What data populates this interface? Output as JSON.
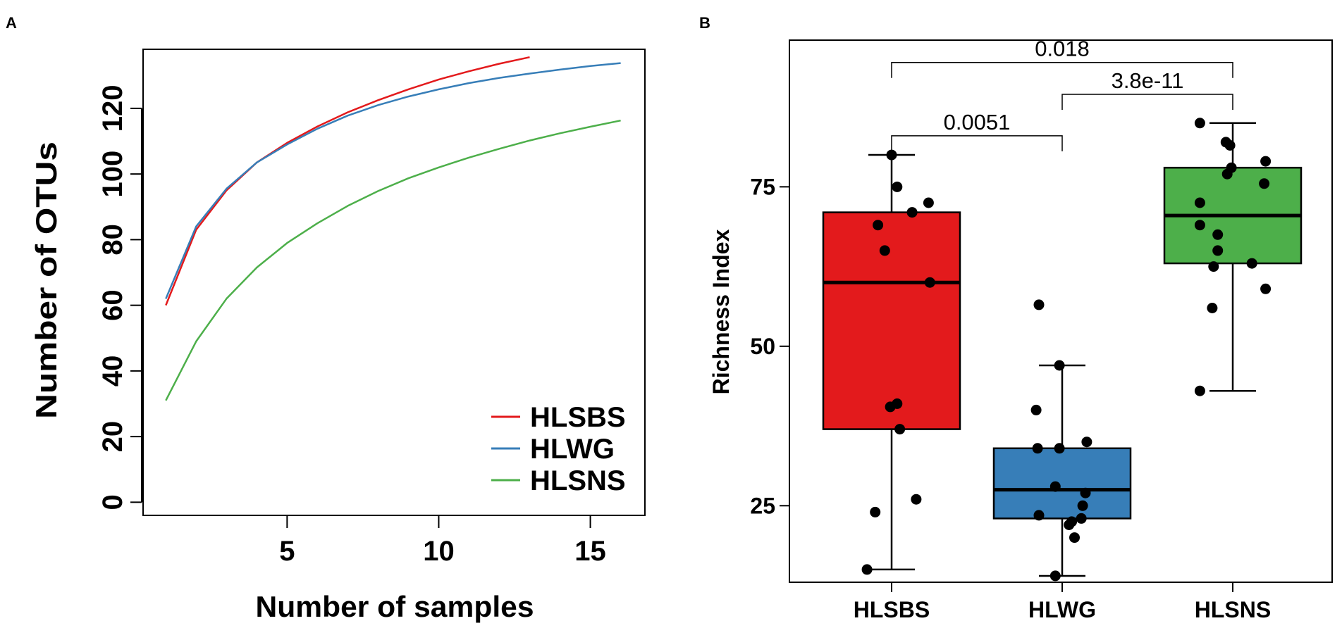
{
  "panels": {
    "a_label": "A",
    "b_label": "B"
  },
  "chart_data": [
    {
      "type": "line",
      "panel": "A",
      "title": "",
      "xlabel": "Number of samples",
      "ylabel": "Number of OTUs",
      "xlim": [
        0.25,
        16.8
      ],
      "ylim": [
        -4,
        138
      ],
      "xticks": [
        5,
        10,
        15
      ],
      "yticks": [
        0,
        20,
        40,
        60,
        80,
        100,
        120
      ],
      "legend_position": "bottom-right",
      "series": [
        {
          "name": "HLSBS",
          "color": "#e31a1c",
          "x": [
            1,
            2,
            3,
            4,
            5,
            6,
            7,
            8,
            9,
            10,
            11,
            12,
            13
          ],
          "y": [
            60,
            83,
            95,
            103.5,
            109.5,
            114.5,
            118.8,
            122.5,
            125.8,
            128.8,
            131.3,
            133.6,
            135.6
          ]
        },
        {
          "name": "HLWG",
          "color": "#377eb8",
          "x": [
            1,
            2,
            3,
            4,
            5,
            6,
            7,
            8,
            9,
            10,
            11,
            12,
            13,
            14,
            15,
            16
          ],
          "y": [
            62,
            84,
            95.5,
            103.5,
            109,
            113.8,
            117.8,
            121,
            123.6,
            125.8,
            127.7,
            129.3,
            130.6,
            131.8,
            132.9,
            133.8
          ]
        },
        {
          "name": "HLSNS",
          "color": "#4daf4a",
          "x": [
            1,
            2,
            3,
            4,
            5,
            6,
            7,
            8,
            9,
            10,
            11,
            12,
            13,
            14,
            15,
            16
          ],
          "y": [
            31,
            49,
            62,
            71.5,
            79,
            85,
            90.3,
            94.8,
            98.7,
            102,
            105,
            107.7,
            110.2,
            112.4,
            114.4,
            116.3
          ]
        }
      ]
    },
    {
      "type": "box",
      "panel": "B",
      "title": "",
      "xlabel": "",
      "ylabel": "Richness Index",
      "ylim": [
        13,
        98
      ],
      "yticks": [
        25,
        50,
        75
      ],
      "categories": [
        "HLSBS",
        "HLWG",
        "HLSNS"
      ],
      "groups": [
        {
          "name": "HLSBS",
          "color": "#e31a1c",
          "box": {
            "min": 15,
            "q1": 37,
            "median": 60,
            "q3": 71,
            "max": 80
          },
          "points": [
            80,
            75,
            72.5,
            71,
            69,
            65,
            60,
            41,
            40.5,
            37,
            26,
            24,
            15
          ],
          "jitter": [
            0.0,
            0.04,
            0.27,
            0.15,
            -0.1,
            -0.05,
            0.28,
            0.04,
            -0.01,
            0.06,
            0.18,
            -0.12,
            -0.18
          ]
        },
        {
          "name": "HLWG",
          "color": "#377eb8",
          "box": {
            "min": 14,
            "q1": 23,
            "median": 27.5,
            "q3": 34,
            "max": 47
          },
          "points": [
            56.5,
            47,
            40,
            35,
            34,
            34,
            28,
            27,
            25,
            23.5,
            23,
            22.5,
            22,
            20,
            14
          ],
          "jitter": [
            -0.17,
            -0.02,
            -0.19,
            0.18,
            -0.18,
            -0.02,
            -0.05,
            0.17,
            0.15,
            -0.17,
            0.14,
            0.07,
            0.05,
            0.09,
            -0.05
          ]
        },
        {
          "name": "HLSNS",
          "color": "#4daf4a",
          "box": {
            "min": 43,
            "q1": 63,
            "median": 70.5,
            "q3": 78,
            "max": 85
          },
          "points": [
            85,
            82,
            81.5,
            79,
            78,
            77,
            75.5,
            72.5,
            69,
            67.5,
            65,
            63,
            62.5,
            59,
            56,
            43
          ],
          "jitter": [
            -0.24,
            -0.05,
            -0.02,
            0.24,
            -0.01,
            -0.04,
            0.23,
            -0.24,
            -0.24,
            -0.11,
            -0.11,
            0.14,
            -0.14,
            0.24,
            -0.15,
            -0.24
          ]
        }
      ],
      "comparisons": [
        {
          "groups": [
            "HLSBS",
            "HLWG"
          ],
          "p_label": "0.0051",
          "bracket_y": 83
        },
        {
          "groups": [
            "HLWG",
            "HLSNS"
          ],
          "p_label": "3.8e-11",
          "bracket_y": 89.5
        },
        {
          "groups": [
            "HLSBS",
            "HLSNS"
          ],
          "p_label": "0.018",
          "bracket_y": 94.5
        }
      ]
    }
  ]
}
